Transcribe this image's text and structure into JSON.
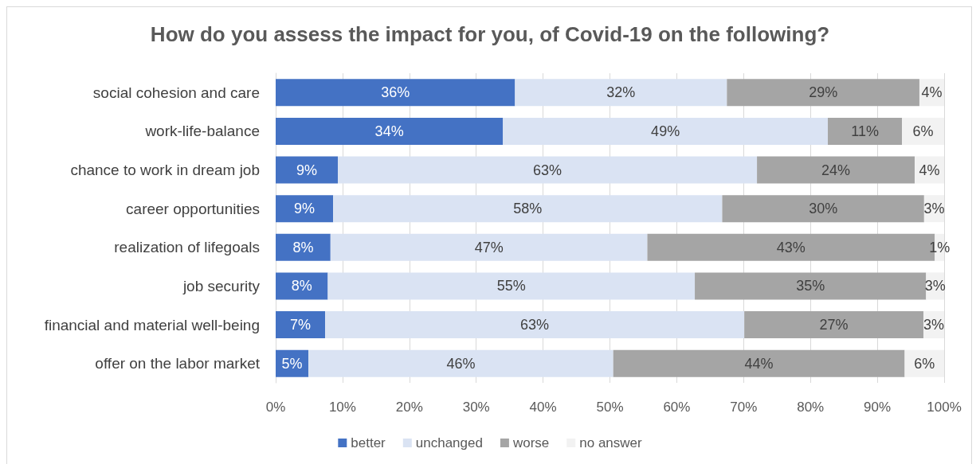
{
  "chart_data": {
    "type": "bar",
    "orientation": "horizontal",
    "stacked": true,
    "title": "How do you assess the impact for you, of Covid-19 on the following?",
    "categories": [
      "social cohesion and care",
      "work-life-balance",
      "chance to work in dream job",
      "career opportunities",
      "realization of lifegoals",
      "job security",
      "financial and material well-being",
      "offer on the labor market"
    ],
    "series": [
      {
        "name": "better",
        "color": "#4472c4",
        "values": [
          35.8,
          34.0,
          9.3,
          8.6,
          8.2,
          7.8,
          7.4,
          4.9
        ],
        "value_labels": [
          "36%",
          "34%",
          "9%",
          "9%",
          "8%",
          "8%",
          "7%",
          "5%"
        ]
      },
      {
        "name": "unchanged",
        "color": "#dae3f3",
        "values": [
          31.7,
          48.6,
          62.7,
          58.2,
          47.4,
          54.9,
          62.7,
          45.6
        ],
        "value_labels": [
          "32%",
          "49%",
          "63%",
          "58%",
          "47%",
          "55%",
          "63%",
          "46%"
        ]
      },
      {
        "name": "worse",
        "color": "#a5a5a5",
        "values": [
          28.8,
          11.1,
          23.6,
          30.2,
          43.0,
          34.6,
          26.8,
          43.6
        ],
        "value_labels": [
          "29%",
          "11%",
          "24%",
          "30%",
          "43%",
          "35%",
          "27%",
          "44%"
        ]
      },
      {
        "name": "no answer",
        "color": "#f2f2f2",
        "values": [
          3.7,
          6.3,
          4.4,
          3.0,
          1.4,
          2.7,
          3.1,
          5.9
        ],
        "value_labels": [
          "4%",
          "6%",
          "4%",
          "3%",
          "1%",
          "3%",
          "3%",
          "6%"
        ]
      }
    ],
    "xlim": [
      0,
      100
    ],
    "xticks": [
      {
        "value": 0,
        "label": "0%"
      },
      {
        "value": 10,
        "label": "10%"
      },
      {
        "value": 20,
        "label": "20%"
      },
      {
        "value": 30,
        "label": "30%"
      },
      {
        "value": 40,
        "label": "40%"
      },
      {
        "value": 50,
        "label": "50%"
      },
      {
        "value": 60,
        "label": "60%"
      },
      {
        "value": 70,
        "label": "70%"
      },
      {
        "value": 80,
        "label": "80%"
      },
      {
        "value": 90,
        "label": "90%"
      },
      {
        "value": 100,
        "label": "100%"
      }
    ],
    "grid": "x",
    "legend": "bottom"
  }
}
